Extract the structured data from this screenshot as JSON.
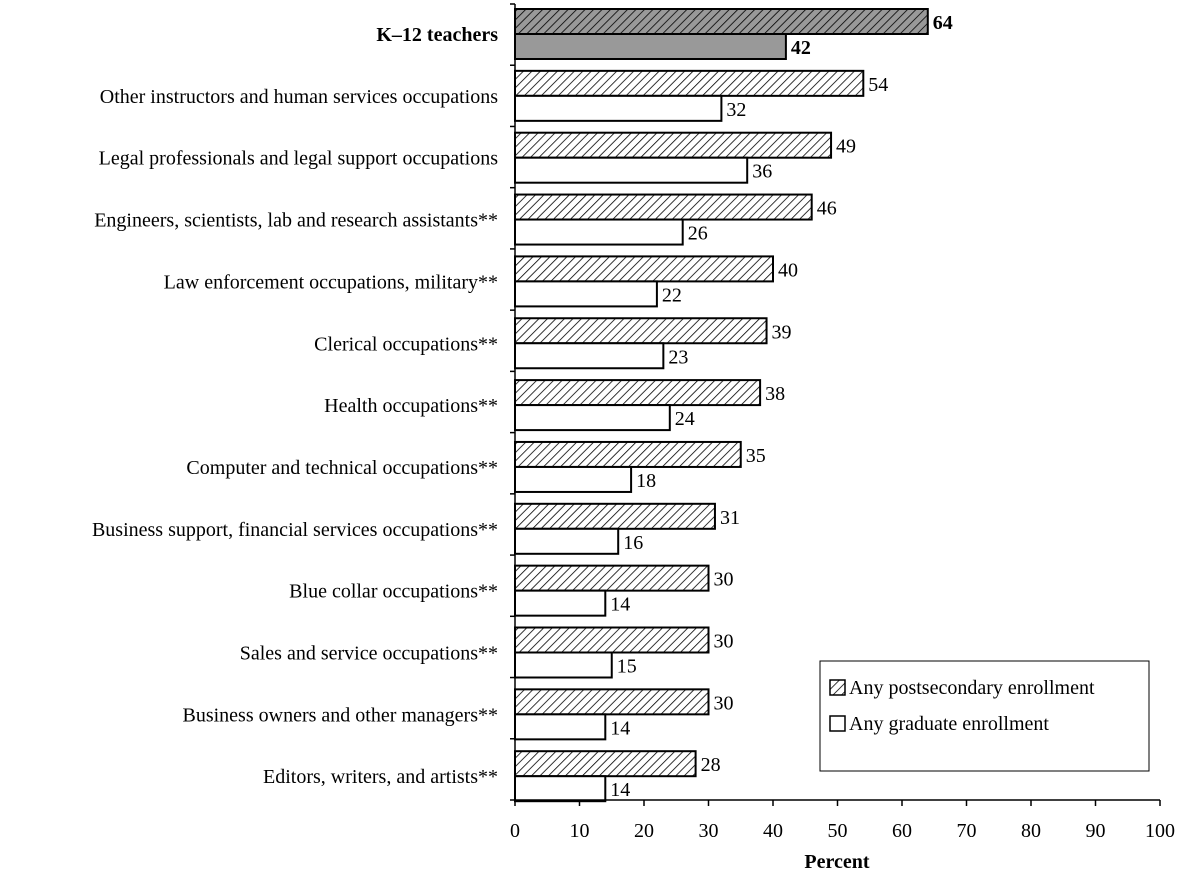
{
  "chart_data": {
    "type": "bar",
    "orientation": "horizontal",
    "categories": [
      "K–12 teachers",
      "Other instructors and human services occupations",
      "Legal professionals and legal support occupations",
      "Engineers, scientists, lab and research assistants**",
      "Law enforcement occupations, military**",
      "Clerical occupations**",
      "Health occupations**",
      "Computer and technical occupations**",
      "Business support, financial services occupations**",
      "Blue collar occupations**",
      "Sales and service occupations**",
      "Business owners and other managers**",
      "Editors, writers, and artists**"
    ],
    "highlight_category": "K–12 teachers",
    "series": [
      {
        "name": "Any postsecondary enrollment",
        "pattern": "diagonal-hatch",
        "values": [
          64,
          54,
          49,
          46,
          40,
          39,
          38,
          35,
          31,
          30,
          30,
          30,
          28
        ]
      },
      {
        "name": "Any graduate enrollment",
        "pattern": "solid-white",
        "values": [
          42,
          32,
          36,
          26,
          22,
          23,
          24,
          18,
          16,
          14,
          15,
          14,
          14
        ]
      }
    ],
    "xlabel": "Percent",
    "xlim": [
      0,
      100
    ],
    "xticks": [
      0,
      10,
      20,
      30,
      40,
      50,
      60,
      70,
      80,
      90,
      100
    ],
    "grid": false,
    "legend_position": "bottom-right",
    "colors": {
      "highlight_fill": "#999999",
      "hatch_stroke": "#000000",
      "plain_fill": "#ffffff",
      "bar_stroke": "#000000"
    }
  }
}
